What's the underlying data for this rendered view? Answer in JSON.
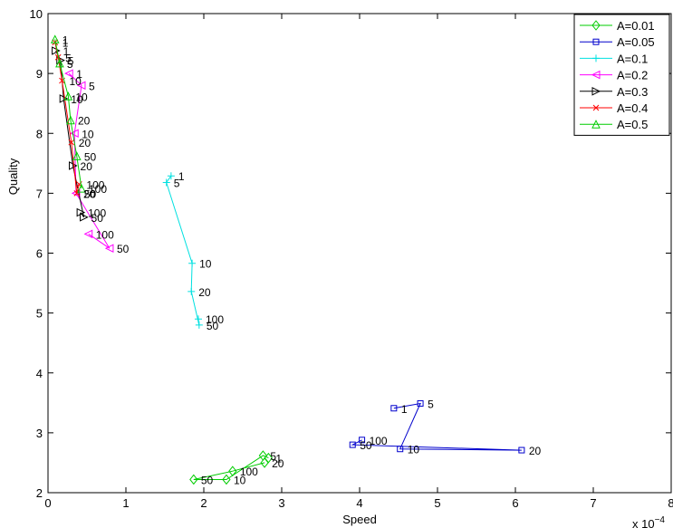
{
  "chart_data": {
    "type": "line",
    "title": "",
    "xlabel": "Speed",
    "ylabel": "Quality",
    "x_scale_label": "x 10",
    "x_scale_exponent": "−4",
    "xlim": [
      0,
      8
    ],
    "ylim": [
      2,
      10
    ],
    "xticks": [
      "0",
      "1",
      "2",
      "3",
      "4",
      "5",
      "6",
      "7",
      "8"
    ],
    "yticks": [
      "2",
      "3",
      "4",
      "5",
      "6",
      "7",
      "8",
      "9",
      "10"
    ],
    "grid": false,
    "legend_position": "top-right",
    "series": [
      {
        "name": "A=0.01",
        "color": "#00cc00",
        "marker": "diamond",
        "x": [
          2.83,
          2.76,
          2.29,
          1.87,
          2.37,
          2.78
        ],
        "y": [
          2.58,
          2.62,
          2.22,
          2.22,
          2.36,
          2.5
        ],
        "labels": [
          "1",
          "5",
          "10",
          "50",
          "100",
          "20"
        ]
      },
      {
        "name": "A=0.05",
        "color": "#0000cc",
        "marker": "square",
        "x": [
          4.44,
          4.78,
          4.52,
          6.08,
          3.91,
          4.03
        ],
        "y": [
          3.41,
          3.49,
          2.73,
          2.71,
          2.8,
          2.88
        ],
        "labels": [
          "1",
          "5",
          "10",
          "20",
          "50",
          "100"
        ]
      },
      {
        "name": "A=0.1",
        "color": "#00e0e0",
        "marker": "plus",
        "x": [
          1.58,
          1.52,
          1.85,
          1.84,
          1.94,
          1.93
        ],
        "y": [
          7.29,
          7.18,
          5.83,
          5.36,
          4.8,
          4.9
        ],
        "labels": [
          "1",
          "5",
          "10",
          "20",
          "50",
          "100"
        ]
      },
      {
        "name": "A=0.2",
        "color": "#ff00ff",
        "marker": "triangle-left",
        "x": [
          0.27,
          0.43,
          0.34,
          0.36,
          0.79,
          0.52
        ],
        "y": [
          9.0,
          8.8,
          8.0,
          7.0,
          6.08,
          6.32
        ],
        "labels": [
          "1",
          "5",
          "10",
          "20",
          "50",
          "100"
        ]
      },
      {
        "name": "A=0.3",
        "color": "#000000",
        "marker": "triangle-right",
        "x": [
          0.1,
          0.16,
          0.2,
          0.32,
          0.46,
          0.42
        ],
        "y": [
          9.38,
          9.22,
          8.58,
          7.46,
          6.6,
          6.68
        ],
        "labels": [
          "1",
          "5",
          "10",
          "20",
          "50",
          "100"
        ]
      },
      {
        "name": "A=0.4",
        "color": "#ff0000",
        "marker": "x",
        "x": [
          0.09,
          0.13,
          0.18,
          0.3,
          0.37,
          0.4
        ],
        "y": [
          9.52,
          9.27,
          8.88,
          7.85,
          7.0,
          7.15
        ],
        "labels": [
          "1",
          "5",
          "10",
          "20",
          "50",
          "100"
        ]
      },
      {
        "name": "A=0.5",
        "color": "#00cc00",
        "marker": "triangle-up",
        "x": [
          0.09,
          0.15,
          0.26,
          0.29,
          0.37,
          0.43
        ],
        "y": [
          9.57,
          9.17,
          8.62,
          8.22,
          7.62,
          7.08
        ],
        "labels": [
          "1",
          "5",
          "10",
          "20",
          "50",
          "100"
        ]
      }
    ]
  }
}
